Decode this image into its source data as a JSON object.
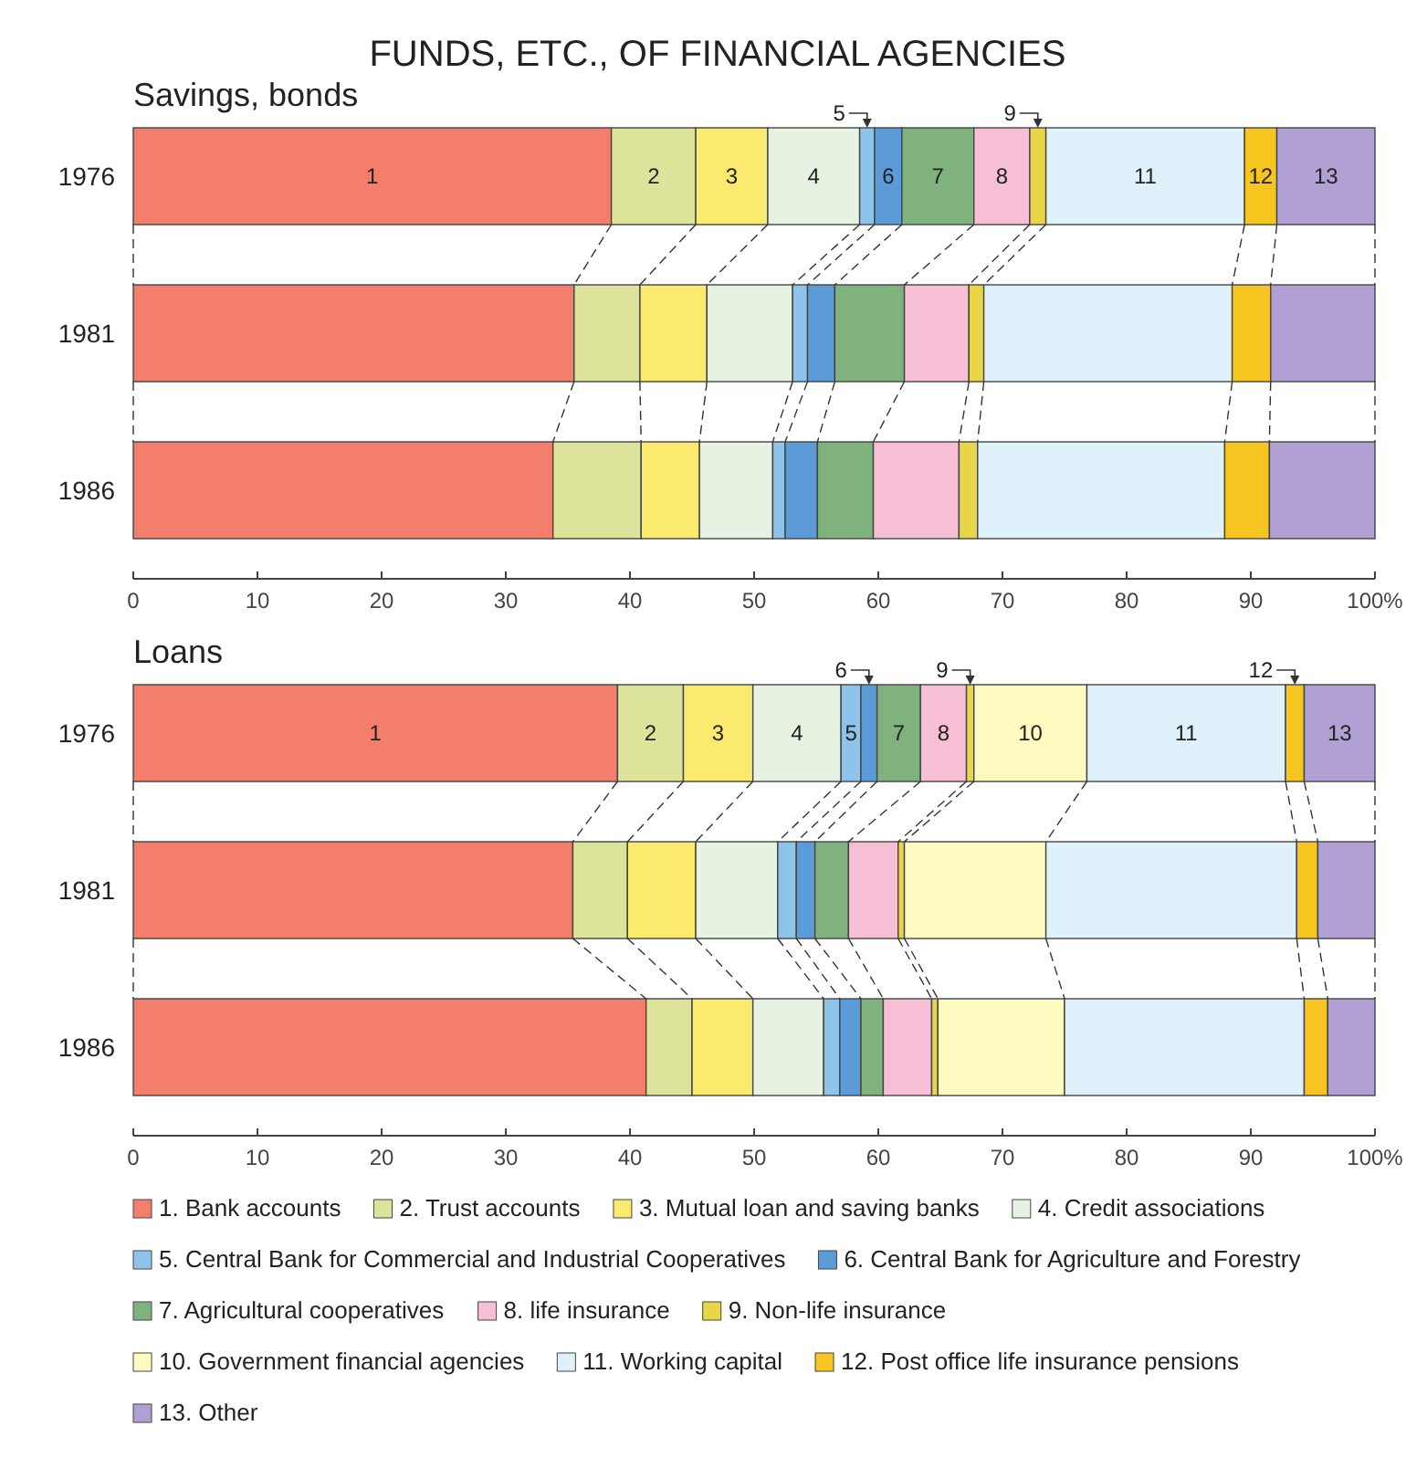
{
  "chart_data": [
    {
      "type": "bar",
      "title": "FUNDS, ETC., OF FINANCIAL AGENCIES",
      "subtitle": "Savings, bonds",
      "orientation": "horizontal",
      "stacked": true,
      "categories": [
        "1976",
        "1981",
        "1986"
      ],
      "xlim": [
        0,
        100
      ],
      "xticks": [
        0,
        10,
        20,
        30,
        40,
        50,
        60,
        70,
        80,
        90,
        {
          "value": 100,
          "label": "100%"
        }
      ],
      "grid": false,
      "legend": false,
      "series": [
        {
          "color": "#f47e6c",
          "values": [
            38.5,
            35.5,
            33.8
          ]
        },
        {
          "color": "#dde39a",
          "values": [
            6.8,
            5.3,
            7.1
          ]
        },
        {
          "color": "#fbea6e",
          "values": [
            5.8,
            5.4,
            4.7
          ]
        },
        {
          "color": "#e6f2e2",
          "values": [
            7.4,
            6.9,
            5.9
          ]
        },
        {
          "color": "#8ec3ec",
          "values": [
            1.2,
            1.2,
            1.0
          ]
        },
        {
          "color": "#5b9bd8",
          "values": [
            2.2,
            2.2,
            2.6
          ]
        },
        {
          "color": "#7fb27c",
          "values": [
            5.8,
            5.6,
            4.5
          ]
        },
        {
          "color": "#f7bfd6",
          "values": [
            4.5,
            5.2,
            6.9
          ]
        },
        {
          "color": "#e8d648",
          "values": [
            1.3,
            1.2,
            1.5
          ]
        },
        {
          "color": "#dff2fc",
          "values": [
            16.0,
            20.0,
            19.9
          ]
        },
        {
          "color": "#f7c520",
          "values": [
            2.6,
            3.1,
            3.6
          ]
        },
        {
          "color": "#b0a0d4",
          "values": [
            7.9,
            8.4,
            8.5
          ]
        }
      ],
      "annotations": [
        "1",
        "2",
        "3",
        "4",
        "5",
        "6",
        "7",
        "8",
        "9",
        "11",
        "12",
        "13"
      ]
    },
    {
      "type": "bar",
      "title": "Loans",
      "orientation": "horizontal",
      "stacked": true,
      "categories": [
        "1976",
        "1981",
        "1986"
      ],
      "xlim": [
        0,
        100
      ],
      "xticks": [
        0,
        10,
        20,
        30,
        40,
        50,
        60,
        70,
        80,
        90,
        {
          "value": 100,
          "label": "100%"
        }
      ],
      "grid": false,
      "legend": "bottom",
      "series": [
        {
          "name": "1. Bank accounts",
          "color": "#f47e6c",
          "values": [
            39.0,
            35.4,
            41.3
          ]
        },
        {
          "name": "2. Trust accounts",
          "color": "#dde39a",
          "values": [
            5.3,
            4.4,
            3.7
          ]
        },
        {
          "name": "3. Mutual loan and saving banks",
          "color": "#fbea6e",
          "values": [
            5.6,
            5.5,
            4.9
          ]
        },
        {
          "name": "4. Credit associations",
          "color": "#e6f2e2",
          "values": [
            7.1,
            6.6,
            5.7
          ]
        },
        {
          "name": "5. Central Bank for Commercial and Industrial Cooperatives",
          "color": "#8ec3ec",
          "values": [
            1.6,
            1.5,
            1.3
          ]
        },
        {
          "name": "6. Central Bank for Agriculture and Forestry",
          "color": "#5b9bd8",
          "values": [
            1.3,
            1.5,
            1.7
          ]
        },
        {
          "name": "7. Agricultural cooperatives",
          "color": "#7fb27c",
          "values": [
            3.5,
            2.7,
            1.8
          ]
        },
        {
          "name": "8. life insurance",
          "color": "#f7bfd6",
          "values": [
            3.7,
            4.0,
            3.9
          ]
        },
        {
          "name": "9. Non-life insurance",
          "color": "#e8d648",
          "values": [
            0.6,
            0.5,
            0.5
          ]
        },
        {
          "name": "10. Government financial agencies",
          "color": "#fdfbc0",
          "values": [
            9.1,
            11.4,
            10.2
          ]
        },
        {
          "name": "11. Working capital",
          "color": "#dff2fc",
          "values": [
            16.0,
            20.2,
            19.3
          ]
        },
        {
          "name": "12. Post office life insurance pensions",
          "color": "#f7c520",
          "values": [
            1.5,
            1.7,
            1.9
          ]
        },
        {
          "name": "13. Other",
          "color": "#b0a0d4",
          "values": [
            5.7,
            4.6,
            3.8
          ]
        }
      ],
      "annotations": [
        "1",
        "2",
        "3",
        "4",
        "5",
        "6",
        "7",
        "8",
        "9",
        "10",
        "11",
        "12",
        "13"
      ]
    }
  ]
}
